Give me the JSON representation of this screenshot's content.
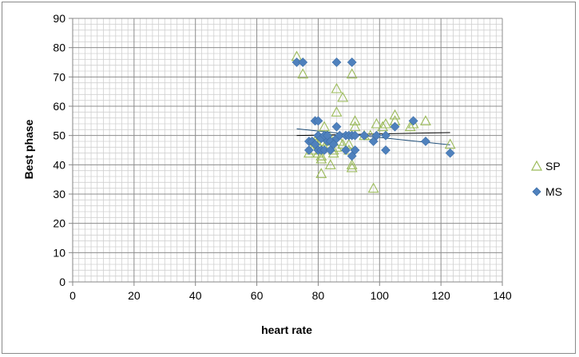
{
  "chart_data": {
    "type": "scatter",
    "title": "",
    "xlabel": "heart rate",
    "ylabel": "Best phase",
    "xlim": [
      0,
      140
    ],
    "ylim": [
      0,
      90
    ],
    "x_ticks": [
      0,
      20,
      40,
      60,
      80,
      100,
      120,
      140
    ],
    "y_ticks": [
      0,
      10,
      20,
      30,
      40,
      50,
      60,
      70,
      80,
      90
    ],
    "x_tick_labels": [
      "0",
      "20",
      "40",
      "60",
      "80",
      "100",
      "120",
      "140"
    ],
    "y_tick_labels": [
      "0",
      "10",
      "20",
      "30",
      "40",
      "50",
      "60",
      "70",
      "80",
      "90"
    ],
    "grid": true,
    "minor_grid": true,
    "legend_position": "right",
    "series": [
      {
        "name": "SP",
        "marker": "triangle-open",
        "color": "#9bbb59",
        "trendline": {
          "x": [
            73,
            123
          ],
          "y": [
            50.0,
            51.0
          ],
          "color": "#000000"
        },
        "points": [
          [
            73,
            77
          ],
          [
            75,
            71
          ],
          [
            77,
            44
          ],
          [
            78,
            45
          ],
          [
            79,
            48
          ],
          [
            80,
            44
          ],
          [
            80,
            47
          ],
          [
            80,
            50
          ],
          [
            81,
            37
          ],
          [
            81,
            42
          ],
          [
            81,
            43
          ],
          [
            82,
            46
          ],
          [
            82,
            48
          ],
          [
            82,
            53
          ],
          [
            83,
            50
          ],
          [
            84,
            49
          ],
          [
            84,
            40
          ],
          [
            85,
            44
          ],
          [
            85,
            45
          ],
          [
            86,
            58
          ],
          [
            86,
            66
          ],
          [
            86,
            46
          ],
          [
            87,
            48
          ],
          [
            88,
            47
          ],
          [
            88,
            63
          ],
          [
            90,
            45
          ],
          [
            90,
            47
          ],
          [
            91,
            71
          ],
          [
            91,
            39
          ],
          [
            91,
            40
          ],
          [
            92,
            55
          ],
          [
            92,
            53
          ],
          [
            95,
            50
          ],
          [
            97,
            50
          ],
          [
            98,
            32
          ],
          [
            99,
            54
          ],
          [
            101,
            53
          ],
          [
            102,
            54
          ],
          [
            105,
            57
          ],
          [
            105,
            55
          ],
          [
            110,
            53
          ],
          [
            111,
            54
          ],
          [
            115,
            55
          ],
          [
            123,
            47
          ]
        ]
      },
      {
        "name": "MS",
        "marker": "diamond",
        "color": "#4f81bd",
        "trendline": {
          "x": [
            73,
            123
          ],
          "y": [
            52.3,
            46.8
          ],
          "color": "#1f4e79"
        },
        "points": [
          [
            73,
            75
          ],
          [
            75,
            75
          ],
          [
            77,
            45
          ],
          [
            77,
            48
          ],
          [
            78,
            48
          ],
          [
            79,
            47
          ],
          [
            79,
            55
          ],
          [
            80,
            55
          ],
          [
            80,
            45
          ],
          [
            80,
            50
          ],
          [
            81,
            45
          ],
          [
            81,
            49
          ],
          [
            82,
            45
          ],
          [
            82,
            50
          ],
          [
            83,
            48
          ],
          [
            83,
            50
          ],
          [
            84,
            48
          ],
          [
            84,
            45
          ],
          [
            85,
            47
          ],
          [
            86,
            75
          ],
          [
            86,
            53
          ],
          [
            86,
            49
          ],
          [
            87,
            50
          ],
          [
            89,
            45
          ],
          [
            89,
            50
          ],
          [
            90,
            50
          ],
          [
            91,
            75
          ],
          [
            91,
            43
          ],
          [
            91,
            50
          ],
          [
            92,
            45
          ],
          [
            92,
            50
          ],
          [
            95,
            50
          ],
          [
            98,
            48
          ],
          [
            99,
            50
          ],
          [
            102,
            45
          ],
          [
            102,
            50
          ],
          [
            105,
            53
          ],
          [
            111,
            55
          ],
          [
            115,
            48
          ],
          [
            123,
            44
          ]
        ]
      }
    ]
  }
}
